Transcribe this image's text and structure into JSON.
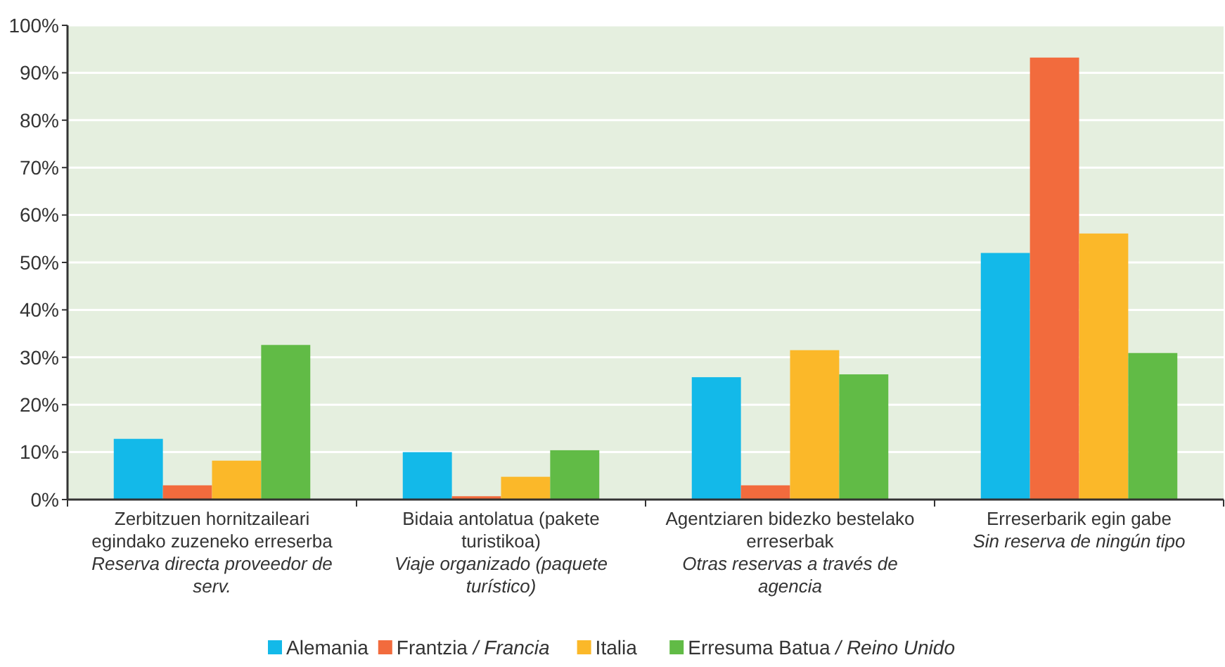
{
  "chart_data": {
    "type": "bar",
    "categories": [
      "Zerbitzuen hornitzaileari\negindako zuzeneko erreserba\nReserva directa proveedor de\nserv.",
      "Bidaia antolatua (pakete\nturistikoa)\nViaje organizado (paquete\nturístico)",
      "Agentziaren bidezko bestelako\nerreserbak\nOtras reservas a través de\nagencia",
      "Erreserbarik egin gabe\nSin reserva de ningún tipo"
    ],
    "series": [
      {
        "name": "Alemania",
        "color": "#13b9e9",
        "values": [
          12.8,
          10.0,
          25.8,
          52.0
        ]
      },
      {
        "name": "Frantzia / Francia",
        "color": "#f26b3d",
        "values": [
          3.0,
          0.7,
          3.0,
          93.2
        ]
      },
      {
        "name": "Italia",
        "color": "#fbb829",
        "values": [
          8.2,
          4.8,
          31.5,
          56.1
        ]
      },
      {
        "name": "Erresuma Batua / Reino Unido",
        "color": "#61bb46",
        "values": [
          32.6,
          10.4,
          26.4,
          30.9
        ]
      }
    ],
    "ylim": [
      0,
      100
    ],
    "yticks": [
      {
        "value": 0,
        "label": "0%"
      },
      {
        "value": 10,
        "label": "10%"
      },
      {
        "value": 20,
        "label": "20%"
      },
      {
        "value": 30,
        "label": "30%"
      },
      {
        "value": 40,
        "label": "40%"
      },
      {
        "value": 50,
        "label": "50%"
      },
      {
        "value": 60,
        "label": "60%"
      },
      {
        "value": 70,
        "label": "70%"
      },
      {
        "value": 80,
        "label": "80%"
      },
      {
        "value": 90,
        "label": "90%"
      },
      {
        "value": 100,
        "label": "100%"
      }
    ],
    "grid": "y",
    "legend": "bottom"
  }
}
